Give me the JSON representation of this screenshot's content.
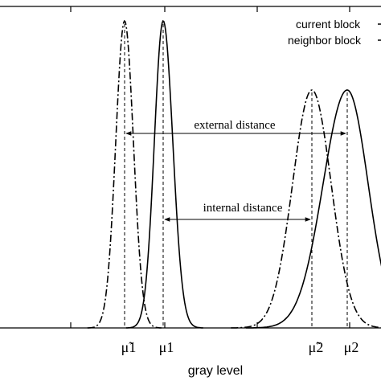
{
  "legend": [
    "current block",
    "neighbor block"
  ],
  "annotations": [
    "external distance",
    "internal distance"
  ],
  "peaks": [
    "μ̃1",
    "μ1",
    "μ̃2",
    "μ2"
  ],
  "x_label": "gray level"
}
